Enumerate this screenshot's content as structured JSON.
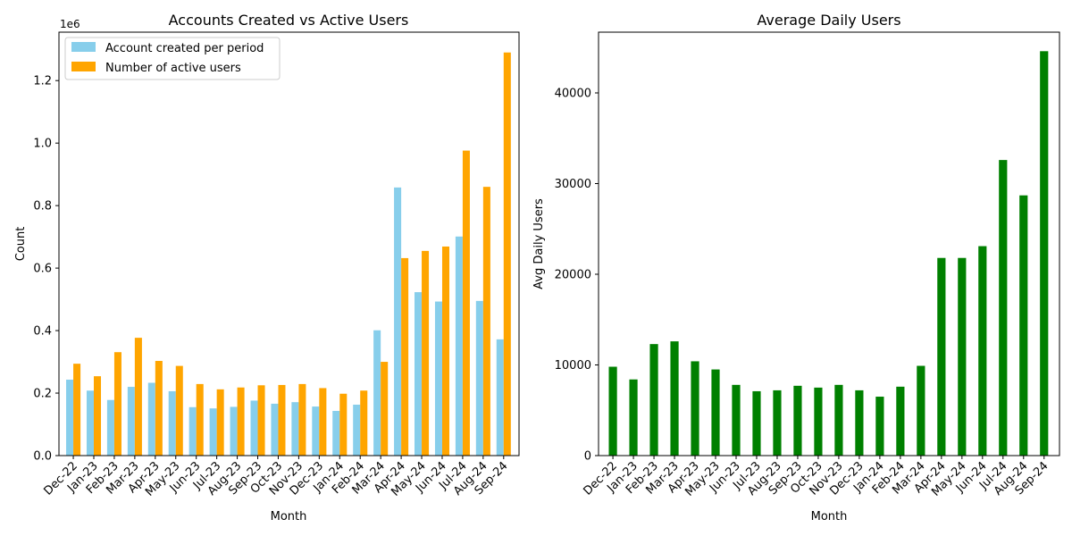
{
  "chart_data": [
    {
      "type": "bar",
      "title": "Accounts Created vs Active Users",
      "xlabel": "Month",
      "ylabel": "Count",
      "offset_label": "1e6",
      "ylim": [
        0,
        1.355
      ],
      "yticks": [
        0.0,
        0.2,
        0.4,
        0.6,
        0.8,
        1.0,
        1.2
      ],
      "ytick_labels": [
        "0.0",
        "0.2",
        "0.4",
        "0.6",
        "0.8",
        "1.0",
        "1.2"
      ],
      "legend_position": "top-left",
      "grid": false,
      "categories": [
        "Dec-22",
        "Jan-23",
        "Feb-23",
        "Mar-23",
        "Apr-23",
        "May-23",
        "Jun-23",
        "Jul-23",
        "Aug-23",
        "Sep-23",
        "Oct-23",
        "Nov-23",
        "Dec-23",
        "Jan-24",
        "Feb-24",
        "Mar-24",
        "Apr-24",
        "May-24",
        "Jun-24",
        "Jul-24",
        "Aug-24",
        "Sep-24"
      ],
      "series": [
        {
          "name": "Account created per period",
          "color": "#87CEEB",
          "values": [
            0.243,
            0.208,
            0.178,
            0.22,
            0.233,
            0.206,
            0.155,
            0.151,
            0.156,
            0.176,
            0.166,
            0.171,
            0.157,
            0.143,
            0.163,
            0.401,
            0.858,
            0.523,
            0.493,
            0.701,
            0.495,
            0.372
          ]
        },
        {
          "name": "Number of active users",
          "color": "#FFA500",
          "values": [
            0.294,
            0.254,
            0.331,
            0.377,
            0.303,
            0.287,
            0.229,
            0.212,
            0.218,
            0.225,
            0.226,
            0.229,
            0.216,
            0.198,
            0.208,
            0.3,
            0.632,
            0.655,
            0.669,
            0.976,
            0.86,
            1.29
          ]
        }
      ]
    },
    {
      "type": "bar",
      "title": "Average Daily Users",
      "xlabel": "Month",
      "ylabel": "Avg Daily Users",
      "ylim": [
        0,
        46700
      ],
      "yticks": [
        0,
        10000,
        20000,
        30000,
        40000
      ],
      "ytick_labels": [
        "0",
        "10000",
        "20000",
        "30000",
        "40000"
      ],
      "grid": false,
      "categories": [
        "Dec-22",
        "Jan-23",
        "Feb-23",
        "Mar-23",
        "Apr-23",
        "May-23",
        "Jun-23",
        "Jul-23",
        "Aug-23",
        "Sep-23",
        "Oct-23",
        "Nov-23",
        "Dec-23",
        "Jan-24",
        "Feb-24",
        "Mar-24",
        "Apr-24",
        "May-24",
        "Jun-24",
        "Jul-24",
        "Aug-24",
        "Sep-24"
      ],
      "series": [
        {
          "color": "#008000",
          "values": [
            9800,
            8400,
            12300,
            12600,
            10400,
            9500,
            7800,
            7100,
            7200,
            7700,
            7500,
            7800,
            7200,
            6500,
            7600,
            9900,
            21800,
            21800,
            23100,
            32600,
            28700,
            44600
          ]
        }
      ]
    }
  ]
}
